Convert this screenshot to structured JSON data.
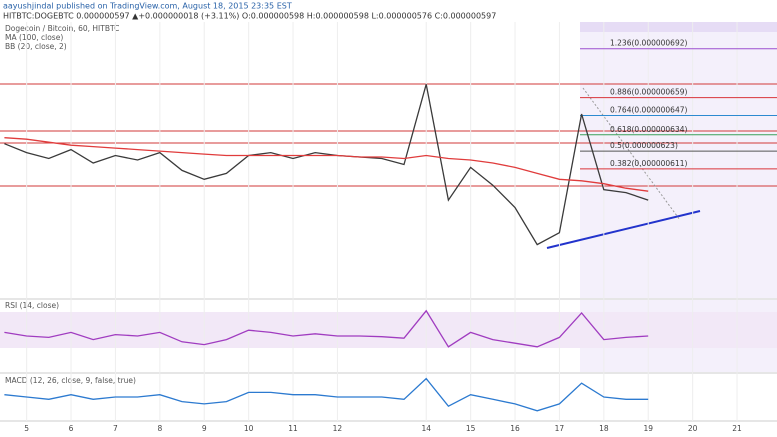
{
  "header": {
    "publisher": "aayushjindal published on TradingView.com, August 18, 2015 23:35 EST",
    "quote": "HITBTC:DOGEBTC 0.000000597 ▲+0.000000018 (+3.11%) O:0.000000598 H:0.000000598 L:0.000000576 C:0.000000597"
  },
  "chart_data": [
    {
      "type": "line",
      "x": [
        4.5,
        5,
        5.5,
        6,
        6.5,
        7,
        7.5,
        8,
        8.5,
        9,
        9.5,
        10,
        10.5,
        11,
        11.5,
        12,
        12.5,
        13,
        13.5,
        14,
        14.5,
        15,
        15.5,
        16,
        16.5,
        17,
        17.5,
        18,
        18.5,
        19
      ],
      "xlim": [
        4.4,
        21.9
      ],
      "xticks": [
        5,
        6,
        7,
        8,
        9,
        10,
        11,
        12,
        14,
        15,
        16,
        17,
        18,
        19,
        20,
        21
      ],
      "ylim": [
        5.24e-07,
        7.1e-07
      ],
      "series": [
        {
          "name": "Dogecoin / Bitcoin, 60, HITBTC",
          "color": "#3a3a3a",
          "values": [
            6.28e-07,
            6.22e-07,
            6.18e-07,
            6.24e-07,
            6.15e-07,
            6.2e-07,
            6.17e-07,
            6.22e-07,
            6.1e-07,
            6.04e-07,
            6.08e-07,
            6.2e-07,
            6.22e-07,
            6.18e-07,
            6.22e-07,
            6.2e-07,
            6.19e-07,
            6.18e-07,
            6.14e-07,
            6.68e-07,
            5.9e-07,
            6.12e-07,
            6e-07,
            5.85e-07,
            5.6e-07,
            5.68e-07,
            6.48e-07,
            5.97e-07,
            5.95e-07,
            5.9e-07
          ]
        },
        {
          "name": "MA (100, close)",
          "color": "#e03c3c",
          "values": [
            6.32e-07,
            6.31e-07,
            6.29e-07,
            6.27e-07,
            6.26e-07,
            6.25e-07,
            6.24e-07,
            6.23e-07,
            6.22e-07,
            6.21e-07,
            6.2e-07,
            6.2e-07,
            6.2e-07,
            6.2e-07,
            6.2e-07,
            6.2e-07,
            6.19e-07,
            6.19e-07,
            6.18e-07,
            6.2e-07,
            6.18e-07,
            6.17e-07,
            6.15e-07,
            6.12e-07,
            6.08e-07,
            6.04e-07,
            6.03e-07,
            6.01e-07,
            5.98e-07,
            5.96e-07
          ]
        }
      ],
      "bb_label": "BB (20, close, 2)",
      "fib_levels": [
        {
          "value": 6.92e-07,
          "label": "1.236(0.000000692)",
          "color": "#9b4fd0"
        },
        {
          "value": 6.59e-07,
          "label": "0.886(0.000000659)",
          "color": "#d9343a"
        },
        {
          "value": 6.47e-07,
          "label": "0.764(0.000000647)",
          "color": "#2c8ad0"
        },
        {
          "value": 6.34e-07,
          "label": "0.618(0.000000634)",
          "color": "#3aa05a"
        },
        {
          "value": 6.23e-07,
          "label": "0.5(0.000000623)",
          "color": "#555555"
        },
        {
          "value": 6.11e-07,
          "label": "0.382(0.000000611)",
          "color": "#d9343a"
        }
      ]
    },
    {
      "type": "line",
      "xlim": [
        4.4,
        21.9
      ],
      "ylim": [
        0,
        100
      ],
      "x": [
        4.5,
        5,
        5.5,
        6,
        6.5,
        7,
        7.5,
        8,
        8.5,
        9,
        9.5,
        10,
        10.5,
        11,
        11.5,
        12,
        12.5,
        13,
        13.5,
        14,
        14.5,
        15,
        15.5,
        16,
        16.5,
        17,
        17.5,
        18,
        18.5,
        19
      ],
      "series": [
        {
          "name": "RSI (14, close)",
          "color": "#a03cc0",
          "values": [
            55,
            50,
            48,
            55,
            45,
            52,
            50,
            55,
            42,
            38,
            45,
            58,
            55,
            50,
            53,
            50,
            50,
            49,
            47,
            85,
            35,
            55,
            45,
            40,
            35,
            48,
            82,
            45,
            48,
            50
          ]
        }
      ]
    },
    {
      "type": "line",
      "xlim": [
        4.4,
        21.9
      ],
      "ylim": [
        -1e-08,
        1e-08
      ],
      "x": [
        4.5,
        5,
        5.5,
        6,
        6.5,
        7,
        7.5,
        8,
        8.5,
        9,
        9.5,
        10,
        10.5,
        11,
        11.5,
        12,
        12.5,
        13,
        13.5,
        14,
        14.5,
        15,
        15.5,
        16,
        16.5,
        17,
        17.5,
        18,
        18.5,
        19
      ],
      "series": [
        {
          "name": "MACD (12, 26, close, 9, false, true)",
          "color": "#2c7ad0",
          "values": [
            1e-09,
            0,
            -1e-09,
            1e-09,
            -1e-09,
            0,
            0,
            1e-09,
            -2e-09,
            -3e-09,
            -2e-09,
            2e-09,
            2e-09,
            1e-09,
            1e-09,
            0,
            0,
            0,
            -1e-09,
            8e-09,
            -4e-09,
            1e-09,
            -1e-09,
            -3e-09,
            -6e-09,
            -3e-09,
            6e-09,
            0,
            -1e-09,
            -1e-09
          ]
        }
      ]
    }
  ]
}
